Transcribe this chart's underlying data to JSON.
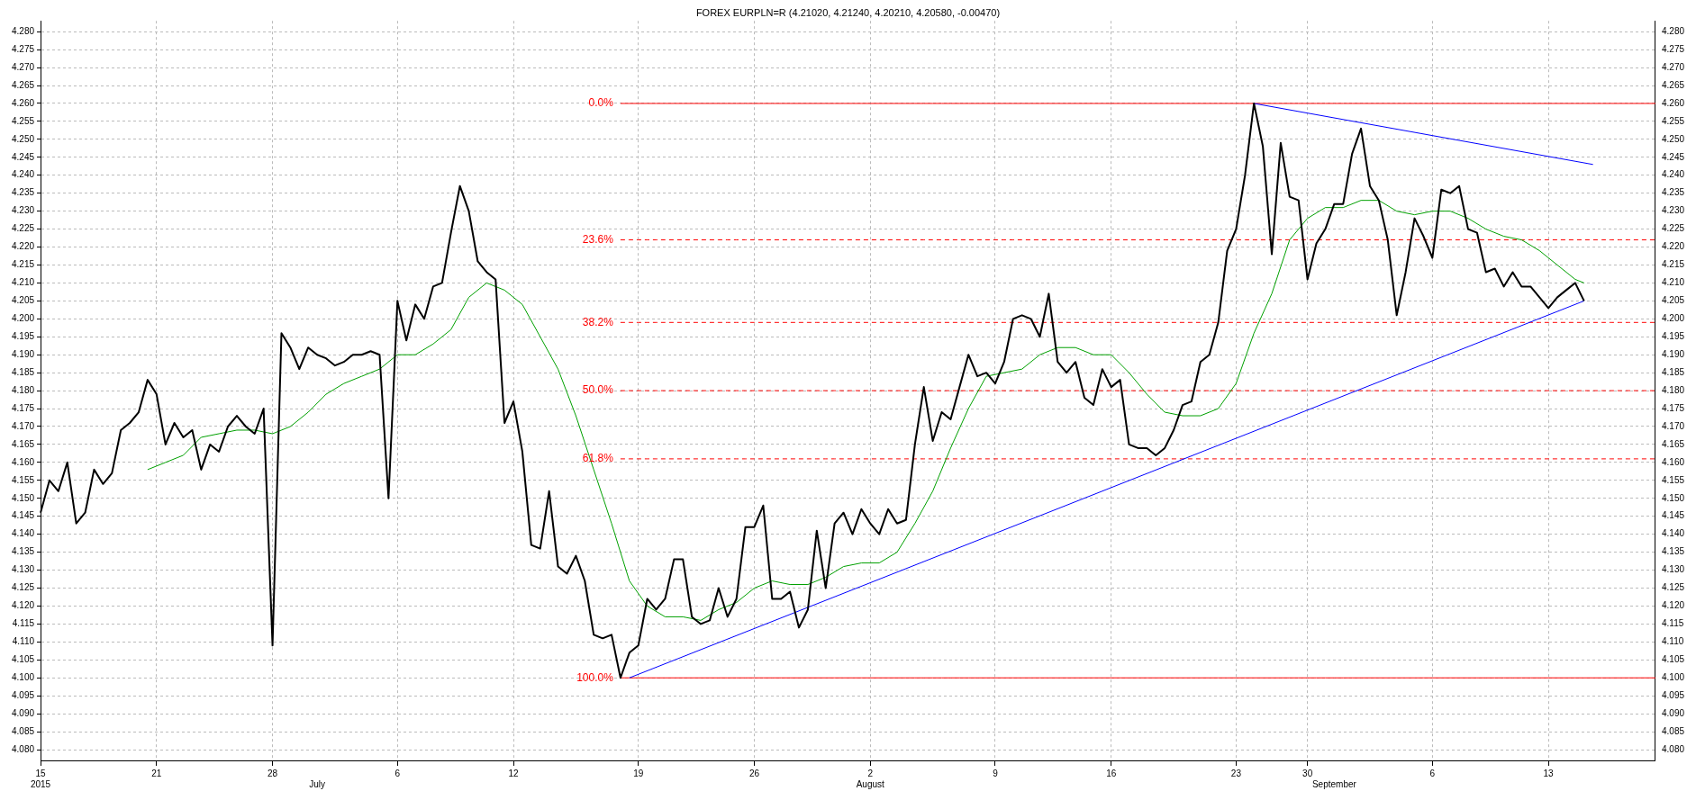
{
  "chart_data": {
    "type": "line",
    "title": "FOREX EURPLN=R (4.21020, 4.21240, 4.20210, 4.20580, -0.00470)",
    "categories": [
      "15\n2015",
      null,
      null,
      null,
      null,
      null,
      null,
      null,
      null,
      null,
      null,
      null,
      null,
      "21",
      null,
      null,
      null,
      null,
      null,
      null,
      null,
      null,
      null,
      null,
      null,
      null,
      "28",
      null,
      null,
      null,
      null,
      "\nJuly",
      null,
      null,
      null,
      null,
      null,
      null,
      null,
      null,
      "6",
      null,
      null,
      null,
      null,
      null,
      null,
      null,
      null,
      null,
      null,
      null,
      null,
      "12",
      null,
      null,
      null,
      null,
      null,
      null,
      null,
      null,
      null,
      null,
      null,
      null,
      null,
      "19",
      null,
      null,
      null,
      null,
      null,
      null,
      null,
      null,
      null,
      null,
      null,
      null,
      "26",
      null,
      null,
      null,
      null,
      null,
      null,
      null,
      null,
      null,
      null,
      null,
      null,
      "2\nAugust",
      null,
      null,
      null,
      null,
      null,
      null,
      null,
      null,
      null,
      null,
      null,
      null,
      null,
      "9",
      null,
      null,
      null,
      null,
      null,
      null,
      null,
      null,
      null,
      null,
      null,
      null,
      "16",
      null,
      null,
      null,
      null,
      null,
      null,
      null,
      null,
      null,
      null,
      null,
      null,
      null,
      "23",
      null,
      null,
      null,
      null,
      null,
      null,
      null,
      "30",
      null,
      null,
      "\nSeptember",
      null,
      null,
      null,
      null,
      null,
      null,
      null,
      null,
      null,
      null,
      "6",
      null,
      null,
      null,
      null,
      null,
      null,
      null,
      null,
      null,
      null,
      null,
      null,
      "13",
      null,
      null,
      null,
      null,
      null,
      null,
      null,
      null,
      null,
      null,
      null,
      null
    ],
    "series": [
      {
        "color": "#000000",
        "values": [
          4.146,
          4.155,
          4.152,
          4.16,
          4.143,
          4.146,
          4.158,
          4.154,
          4.157,
          4.169,
          4.171,
          4.174,
          4.183,
          4.179,
          4.165,
          4.171,
          4.167,
          4.169,
          4.158,
          4.165,
          4.163,
          4.17,
          4.173,
          4.17,
          4.168,
          4.175,
          4.109,
          4.196,
          4.192,
          4.186,
          4.192,
          4.19,
          4.189,
          4.187,
          4.188,
          4.19,
          4.19,
          4.191,
          4.19,
          4.15,
          4.205,
          4.194,
          4.204,
          4.2,
          4.209,
          4.21,
          4.224,
          4.237,
          4.23,
          4.216,
          4.213,
          4.211,
          4.171,
          4.177,
          4.163,
          4.137,
          4.136,
          4.152,
          4.131,
          4.129,
          4.134,
          4.127,
          4.112,
          4.111,
          4.112,
          4.1,
          4.107,
          4.109,
          4.122,
          4.119,
          4.122,
          4.133,
          4.133,
          4.117,
          4.115,
          4.116,
          4.125,
          4.117,
          4.122,
          4.142,
          4.142,
          4.148,
          4.122,
          4.122,
          4.124,
          4.114,
          4.119,
          4.141,
          4.125,
          4.143,
          4.146,
          4.14,
          4.147,
          4.143,
          4.14,
          4.147,
          4.143,
          4.144,
          4.165,
          4.181,
          4.166,
          4.174,
          4.172,
          4.181,
          4.19,
          4.184,
          4.185,
          4.182,
          4.188,
          4.2,
          4.201,
          4.2,
          4.195,
          4.207,
          4.188,
          4.185,
          4.188,
          4.178,
          4.176,
          4.186,
          4.181,
          4.183,
          4.165,
          4.164,
          4.164,
          4.162,
          4.164,
          4.169,
          4.176,
          4.177,
          4.188,
          4.19,
          4.199,
          4.219,
          4.225,
          4.24,
          4.26,
          4.248,
          4.218,
          4.249,
          4.234,
          4.233,
          4.211,
          4.221,
          4.225,
          4.232,
          4.232,
          4.246,
          4.253,
          4.237,
          4.233,
          4.222,
          4.201,
          4.213,
          4.228,
          4.223,
          4.217,
          4.236,
          4.235,
          4.237,
          4.225,
          4.224,
          4.213,
          4.214,
          4.209,
          4.213,
          4.209,
          4.209,
          4.206,
          4.203,
          4.206,
          4.208,
          4.21,
          4.205,
          null,
          null,
          null,
          null,
          null,
          null,
          null,
          null
        ]
      },
      {
        "color": "#00a000",
        "values": [
          null,
          null,
          null,
          null,
          null,
          null,
          null,
          null,
          null,
          null,
          null,
          null,
          4.158,
          null,
          4.16,
          null,
          4.162,
          null,
          4.167,
          null,
          4.168,
          null,
          4.169,
          null,
          4.169,
          null,
          4.168,
          null,
          4.17,
          null,
          4.174,
          null,
          4.179,
          null,
          4.182,
          null,
          4.184,
          null,
          4.186,
          null,
          4.19,
          null,
          4.19,
          null,
          4.193,
          null,
          4.197,
          null,
          4.206,
          null,
          4.21,
          null,
          4.208,
          null,
          4.204,
          null,
          4.195,
          null,
          4.186,
          null,
          4.173,
          null,
          4.158,
          null,
          4.143,
          null,
          4.127,
          null,
          4.12,
          null,
          4.117,
          null,
          4.117,
          null,
          4.116,
          null,
          4.119,
          null,
          4.121,
          null,
          4.125,
          null,
          4.127,
          null,
          4.126,
          null,
          4.126,
          null,
          4.128,
          null,
          4.131,
          null,
          4.132,
          null,
          4.132,
          null,
          4.135,
          null,
          4.143,
          null,
          4.152,
          null,
          4.164,
          null,
          4.175,
          null,
          4.184,
          null,
          4.185,
          null,
          4.186,
          null,
          4.19,
          null,
          4.192,
          null,
          4.192,
          null,
          4.19,
          null,
          4.19,
          null,
          4.185,
          null,
          4.179,
          null,
          4.174,
          null,
          4.173,
          null,
          4.173,
          null,
          4.175,
          null,
          4.182,
          null,
          4.196,
          null,
          4.207,
          null,
          4.222,
          null,
          4.228,
          null,
          4.231,
          null,
          4.231,
          null,
          4.233,
          null,
          4.233,
          null,
          4.23,
          null,
          4.229,
          null,
          4.23,
          null,
          4.23,
          null,
          4.228,
          null,
          4.225,
          null,
          4.223,
          null,
          4.222,
          null,
          4.219,
          null,
          4.215,
          null,
          4.211,
          4.21,
          null,
          null,
          null,
          null,
          null,
          null,
          null,
          null
        ]
      },
      {
        "color": "#0000ff",
        "values": [
          null,
          null,
          null,
          null,
          null,
          null,
          null,
          null,
          null,
          null,
          null,
          null,
          null,
          null,
          null,
          null,
          null,
          null,
          null,
          null,
          null,
          null,
          null,
          null,
          null,
          null,
          null,
          null,
          null,
          null,
          null,
          null,
          null,
          null,
          null,
          null,
          null,
          null,
          null,
          null,
          null,
          null,
          null,
          null,
          null,
          null,
          null,
          null,
          null,
          null,
          null,
          null,
          null,
          null,
          null,
          null,
          null,
          null,
          null,
          null,
          null,
          null,
          null,
          null,
          null,
          null,
          4.1,
          null,
          null,
          null,
          null,
          null,
          null,
          null,
          null,
          null,
          null,
          null,
          null,
          null,
          null,
          null,
          null,
          null,
          null,
          null,
          null,
          null,
          null,
          null,
          null,
          null,
          null,
          null,
          null,
          null,
          null,
          null,
          null,
          null,
          null,
          null,
          null,
          null,
          null,
          null,
          null,
          null,
          null,
          null,
          null,
          null,
          null,
          null,
          null,
          null,
          null,
          null,
          null,
          null,
          null,
          null,
          null,
          null,
          null,
          null,
          null,
          null,
          null,
          null,
          null,
          null,
          null,
          null,
          null,
          null,
          null,
          null,
          null,
          null,
          null,
          null,
          null,
          null,
          null,
          null,
          null,
          null,
          null,
          null,
          null,
          null,
          null,
          null,
          null,
          null,
          null,
          null,
          null,
          null,
          null,
          null,
          null,
          null,
          null,
          null,
          null,
          null,
          null,
          null,
          null,
          null,
          null,
          4.205,
          null,
          null,
          null,
          null,
          null,
          null,
          null,
          null
        ]
      },
      {
        "color": "#0000ff",
        "values": [
          null,
          null,
          null,
          null,
          null,
          null,
          null,
          null,
          null,
          null,
          null,
          null,
          null,
          null,
          null,
          null,
          null,
          null,
          null,
          null,
          null,
          null,
          null,
          null,
          null,
          null,
          null,
          null,
          null,
          null,
          null,
          null,
          null,
          null,
          null,
          null,
          null,
          null,
          null,
          null,
          null,
          null,
          null,
          null,
          null,
          null,
          null,
          null,
          null,
          null,
          null,
          null,
          null,
          null,
          null,
          null,
          null,
          null,
          null,
          null,
          null,
          null,
          null,
          null,
          null,
          null,
          null,
          null,
          null,
          null,
          null,
          null,
          null,
          null,
          null,
          null,
          null,
          null,
          null,
          null,
          null,
          null,
          null,
          null,
          null,
          null,
          null,
          null,
          null,
          null,
          null,
          null,
          null,
          null,
          null,
          null,
          null,
          null,
          null,
          null,
          null,
          null,
          null,
          null,
          null,
          null,
          null,
          null,
          null,
          null,
          null,
          null,
          null,
          null,
          null,
          null,
          null,
          null,
          null,
          null,
          null,
          null,
          null,
          null,
          null,
          null,
          null,
          null,
          null,
          null,
          null,
          null,
          null,
          null,
          null,
          null,
          4.26,
          null,
          null,
          null,
          null,
          null,
          null,
          null,
          null,
          null,
          null,
          null,
          null,
          null,
          null,
          null,
          null,
          null,
          null,
          null,
          null,
          null,
          null,
          null,
          null,
          null,
          null,
          null,
          null,
          null,
          null,
          null,
          null,
          null,
          null,
          null,
          null,
          null,
          4.243,
          null,
          null,
          null,
          null,
          null,
          null,
          null
        ]
      },
      {
        "name": "0.0%",
        "color": "#ff0000",
        "line_style": "solid",
        "values": [
          null,
          null,
          null,
          null,
          null,
          null,
          null,
          null,
          null,
          null,
          null,
          null,
          null,
          null,
          null,
          null,
          null,
          null,
          null,
          null,
          null,
          null,
          null,
          null,
          null,
          null,
          null,
          null,
          null,
          null,
          null,
          null,
          null,
          null,
          null,
          null,
          null,
          null,
          null,
          null,
          null,
          null,
          null,
          null,
          null,
          null,
          null,
          null,
          null,
          null,
          null,
          null,
          null,
          null,
          null,
          null,
          null,
          null,
          null,
          null,
          null,
          null,
          null,
          null,
          null,
          4.26,
          4.26,
          4.26,
          4.26,
          4.26,
          4.26,
          4.26,
          4.26,
          4.26,
          4.26,
          4.26,
          4.26,
          4.26,
          4.26,
          4.26,
          4.26,
          4.26,
          4.26,
          4.26,
          4.26,
          4.26,
          4.26,
          4.26,
          4.26,
          4.26,
          4.26,
          4.26,
          4.26,
          4.26,
          4.26,
          4.26,
          4.26,
          4.26,
          4.26,
          4.26,
          4.26,
          4.26,
          4.26,
          4.26,
          4.26,
          4.26,
          4.26,
          4.26,
          4.26,
          4.26,
          4.26,
          4.26,
          4.26,
          4.26,
          4.26,
          4.26,
          4.26,
          4.26,
          4.26,
          4.26,
          4.26,
          4.26,
          4.26,
          4.26,
          4.26,
          4.26,
          4.26,
          4.26,
          4.26,
          4.26,
          4.26,
          4.26,
          4.26,
          4.26,
          4.26,
          4.26,
          4.26,
          4.26,
          4.26,
          4.26,
          4.26,
          4.26,
          4.26,
          4.26,
          4.26,
          4.26,
          4.26,
          4.26,
          4.26,
          4.26,
          4.26,
          4.26,
          4.26,
          4.26,
          4.26,
          4.26,
          4.26,
          4.26,
          4.26,
          4.26,
          4.26,
          4.26,
          4.26,
          4.26,
          4.26,
          4.26,
          4.26,
          4.26,
          4.26,
          4.26,
          4.26,
          4.26,
          4.26,
          4.26,
          4.26,
          4.26,
          4.26,
          4.26,
          4.26,
          4.26,
          4.26,
          4.26
        ]
      },
      {
        "name": "23.6%",
        "color": "#ff0000",
        "line_style": "dashed",
        "values": [
          null,
          null,
          null,
          null,
          null,
          null,
          null,
          null,
          null,
          null,
          null,
          null,
          null,
          null,
          null,
          null,
          null,
          null,
          null,
          null,
          null,
          null,
          null,
          null,
          null,
          null,
          null,
          null,
          null,
          null,
          null,
          null,
          null,
          null,
          null,
          null,
          null,
          null,
          null,
          null,
          null,
          null,
          null,
          null,
          null,
          null,
          null,
          null,
          null,
          null,
          null,
          null,
          null,
          null,
          null,
          null,
          null,
          null,
          null,
          null,
          null,
          null,
          null,
          null,
          null,
          4.222,
          4.222,
          4.222,
          4.222,
          4.222,
          4.222,
          4.222,
          4.222,
          4.222,
          4.222,
          4.222,
          4.222,
          4.222,
          4.222,
          4.222,
          4.222,
          4.222,
          4.222,
          4.222,
          4.222,
          4.222,
          4.222,
          4.222,
          4.222,
          4.222,
          4.222,
          4.222,
          4.222,
          4.222,
          4.222,
          4.222,
          4.222,
          4.222,
          4.222,
          4.222,
          4.222,
          4.222,
          4.222,
          4.222,
          4.222,
          4.222,
          4.222,
          4.222,
          4.222,
          4.222,
          4.222,
          4.222,
          4.222,
          4.222,
          4.222,
          4.222,
          4.222,
          4.222,
          4.222,
          4.222,
          4.222,
          4.222,
          4.222,
          4.222,
          4.222,
          4.222,
          4.222,
          4.222,
          4.222,
          4.222,
          4.222,
          4.222,
          4.222,
          4.222,
          4.222,
          4.222,
          4.222,
          4.222,
          4.222,
          4.222,
          4.222,
          4.222,
          4.222,
          4.222,
          4.222,
          4.222,
          4.222,
          4.222,
          4.222,
          4.222,
          4.222,
          4.222,
          4.222,
          4.222,
          4.222,
          4.222,
          4.222,
          4.222,
          4.222,
          4.222,
          4.222,
          4.222,
          4.222,
          4.222,
          4.222,
          4.222,
          4.222,
          4.222,
          4.222,
          4.222,
          4.222,
          4.222,
          4.222,
          4.222,
          4.222,
          4.222,
          4.222,
          4.222,
          4.222,
          4.222,
          4.222,
          4.222
        ]
      },
      {
        "name": "38.2%",
        "color": "#ff0000",
        "line_style": "dashed",
        "values": [
          null,
          null,
          null,
          null,
          null,
          null,
          null,
          null,
          null,
          null,
          null,
          null,
          null,
          null,
          null,
          null,
          null,
          null,
          null,
          null,
          null,
          null,
          null,
          null,
          null,
          null,
          null,
          null,
          null,
          null,
          null,
          null,
          null,
          null,
          null,
          null,
          null,
          null,
          null,
          null,
          null,
          null,
          null,
          null,
          null,
          null,
          null,
          null,
          null,
          null,
          null,
          null,
          null,
          null,
          null,
          null,
          null,
          null,
          null,
          null,
          null,
          null,
          null,
          null,
          null,
          4.199,
          4.199,
          4.199,
          4.199,
          4.199,
          4.199,
          4.199,
          4.199,
          4.199,
          4.199,
          4.199,
          4.199,
          4.199,
          4.199,
          4.199,
          4.199,
          4.199,
          4.199,
          4.199,
          4.199,
          4.199,
          4.199,
          4.199,
          4.199,
          4.199,
          4.199,
          4.199,
          4.199,
          4.199,
          4.199,
          4.199,
          4.199,
          4.199,
          4.199,
          4.199,
          4.199,
          4.199,
          4.199,
          4.199,
          4.199,
          4.199,
          4.199,
          4.199,
          4.199,
          4.199,
          4.199,
          4.199,
          4.199,
          4.199,
          4.199,
          4.199,
          4.199,
          4.199,
          4.199,
          4.199,
          4.199,
          4.199,
          4.199,
          4.199,
          4.199,
          4.199,
          4.199,
          4.199,
          4.199,
          4.199,
          4.199,
          4.199,
          4.199,
          4.199,
          4.199,
          4.199,
          4.199,
          4.199,
          4.199,
          4.199,
          4.199,
          4.199,
          4.199,
          4.199,
          4.199,
          4.199,
          4.199,
          4.199,
          4.199,
          4.199,
          4.199,
          4.199,
          4.199,
          4.199,
          4.199,
          4.199,
          4.199,
          4.199,
          4.199,
          4.199,
          4.199,
          4.199,
          4.199,
          4.199,
          4.199,
          4.199,
          4.199,
          4.199,
          4.199,
          4.199,
          4.199,
          4.199,
          4.199,
          4.199,
          4.199,
          4.199,
          4.199,
          4.199,
          4.199,
          4.199,
          4.199,
          4.199
        ]
      },
      {
        "name": "50.0%",
        "color": "#ff0000",
        "line_style": "dashed",
        "values": [
          null,
          null,
          null,
          null,
          null,
          null,
          null,
          null,
          null,
          null,
          null,
          null,
          null,
          null,
          null,
          null,
          null,
          null,
          null,
          null,
          null,
          null,
          null,
          null,
          null,
          null,
          null,
          null,
          null,
          null,
          null,
          null,
          null,
          null,
          null,
          null,
          null,
          null,
          null,
          null,
          null,
          null,
          null,
          null,
          null,
          null,
          null,
          null,
          null,
          null,
          null,
          null,
          null,
          null,
          null,
          null,
          null,
          null,
          null,
          null,
          null,
          null,
          null,
          null,
          null,
          4.18,
          4.18,
          4.18,
          4.18,
          4.18,
          4.18,
          4.18,
          4.18,
          4.18,
          4.18,
          4.18,
          4.18,
          4.18,
          4.18,
          4.18,
          4.18,
          4.18,
          4.18,
          4.18,
          4.18,
          4.18,
          4.18,
          4.18,
          4.18,
          4.18,
          4.18,
          4.18,
          4.18,
          4.18,
          4.18,
          4.18,
          4.18,
          4.18,
          4.18,
          4.18,
          4.18,
          4.18,
          4.18,
          4.18,
          4.18,
          4.18,
          4.18,
          4.18,
          4.18,
          4.18,
          4.18,
          4.18,
          4.18,
          4.18,
          4.18,
          4.18,
          4.18,
          4.18,
          4.18,
          4.18,
          4.18,
          4.18,
          4.18,
          4.18,
          4.18,
          4.18,
          4.18,
          4.18,
          4.18,
          4.18,
          4.18,
          4.18,
          4.18,
          4.18,
          4.18,
          4.18,
          4.18,
          4.18,
          4.18,
          4.18,
          4.18,
          4.18,
          4.18,
          4.18,
          4.18,
          4.18,
          4.18,
          4.18,
          4.18,
          4.18,
          4.18,
          4.18,
          4.18,
          4.18,
          4.18,
          4.18,
          4.18,
          4.18,
          4.18,
          4.18,
          4.18,
          4.18,
          4.18,
          4.18,
          4.18,
          4.18,
          4.18,
          4.18,
          4.18,
          4.18,
          4.18,
          4.18,
          4.18,
          4.18,
          4.18,
          4.18,
          4.18,
          4.18,
          4.18,
          4.18,
          4.18,
          4.18
        ]
      },
      {
        "name": "61.8%",
        "color": "#ff0000",
        "line_style": "dashed",
        "values": [
          null,
          null,
          null,
          null,
          null,
          null,
          null,
          null,
          null,
          null,
          null,
          null,
          null,
          null,
          null,
          null,
          null,
          null,
          null,
          null,
          null,
          null,
          null,
          null,
          null,
          null,
          null,
          null,
          null,
          null,
          null,
          null,
          null,
          null,
          null,
          null,
          null,
          null,
          null,
          null,
          null,
          null,
          null,
          null,
          null,
          null,
          null,
          null,
          null,
          null,
          null,
          null,
          null,
          null,
          null,
          null,
          null,
          null,
          null,
          null,
          null,
          null,
          null,
          null,
          null,
          4.161,
          4.161,
          4.161,
          4.161,
          4.161,
          4.161,
          4.161,
          4.161,
          4.161,
          4.161,
          4.161,
          4.161,
          4.161,
          4.161,
          4.161,
          4.161,
          4.161,
          4.161,
          4.161,
          4.161,
          4.161,
          4.161,
          4.161,
          4.161,
          4.161,
          4.161,
          4.161,
          4.161,
          4.161,
          4.161,
          4.161,
          4.161,
          4.161,
          4.161,
          4.161,
          4.161,
          4.161,
          4.161,
          4.161,
          4.161,
          4.161,
          4.161,
          4.161,
          4.161,
          4.161,
          4.161,
          4.161,
          4.161,
          4.161,
          4.161,
          4.161,
          4.161,
          4.161,
          4.161,
          4.161,
          4.161,
          4.161,
          4.161,
          4.161,
          4.161,
          4.161,
          4.161,
          4.161,
          4.161,
          4.161,
          4.161,
          4.161,
          4.161,
          4.161,
          4.161,
          4.161,
          4.161,
          4.161,
          4.161,
          4.161,
          4.161,
          4.161,
          4.161,
          4.161,
          4.161,
          4.161,
          4.161,
          4.161,
          4.161,
          4.161,
          4.161,
          4.161,
          4.161,
          4.161,
          4.161,
          4.161,
          4.161,
          4.161,
          4.161,
          4.161,
          4.161,
          4.161,
          4.161,
          4.161,
          4.161,
          4.161,
          4.161,
          4.161,
          4.161,
          4.161,
          4.161,
          4.161,
          4.161,
          4.161,
          4.161,
          4.161,
          4.161,
          4.161,
          4.161,
          4.161,
          4.161,
          4.161
        ]
      },
      {
        "name": "100.0%",
        "color": "#ff0000",
        "line_style": "solid",
        "values": [
          null,
          null,
          null,
          null,
          null,
          null,
          null,
          null,
          null,
          null,
          null,
          null,
          null,
          null,
          null,
          null,
          null,
          null,
          null,
          null,
          null,
          null,
          null,
          null,
          null,
          null,
          null,
          null,
          null,
          null,
          null,
          null,
          null,
          null,
          null,
          null,
          null,
          null,
          null,
          null,
          null,
          null,
          null,
          null,
          null,
          null,
          null,
          null,
          null,
          null,
          null,
          null,
          null,
          null,
          null,
          null,
          null,
          null,
          null,
          null,
          null,
          null,
          null,
          null,
          null,
          4.1,
          4.1,
          4.1,
          4.1,
          4.1,
          4.1,
          4.1,
          4.1,
          4.1,
          4.1,
          4.1,
          4.1,
          4.1,
          4.1,
          4.1,
          4.1,
          4.1,
          4.1,
          4.1,
          4.1,
          4.1,
          4.1,
          4.1,
          4.1,
          4.1,
          4.1,
          4.1,
          4.1,
          4.1,
          4.1,
          4.1,
          4.1,
          4.1,
          4.1,
          4.1,
          4.1,
          4.1,
          4.1,
          4.1,
          4.1,
          4.1,
          4.1,
          4.1,
          4.1,
          4.1,
          4.1,
          4.1,
          4.1,
          4.1,
          4.1,
          4.1,
          4.1,
          4.1,
          4.1,
          4.1,
          4.1,
          4.1,
          4.1,
          4.1,
          4.1,
          4.1,
          4.1,
          4.1,
          4.1,
          4.1,
          4.1,
          4.1,
          4.1,
          4.1,
          4.1,
          4.1,
          4.1,
          4.1,
          4.1,
          4.1,
          4.1,
          4.1,
          4.1,
          4.1,
          4.1,
          4.1,
          4.1,
          4.1,
          4.1,
          4.1,
          4.1,
          4.1,
          4.1,
          4.1,
          4.1,
          4.1,
          4.1,
          4.1,
          4.1,
          4.1,
          4.1,
          4.1,
          4.1,
          4.1,
          4.1,
          4.1,
          4.1,
          4.1,
          4.1,
          4.1,
          4.1,
          4.1,
          4.1,
          4.1,
          4.1,
          4.1,
          4.1,
          4.1,
          4.1,
          4.1,
          4.1,
          4.1
        ]
      }
    ],
    "ylim": [
      4.077,
      4.283
    ],
    "yticks": [
      {
        "value": 4.08,
        "label": "4.080"
      },
      4.085,
      {
        "value": 4.09,
        "label": "4.090"
      },
      4.095,
      {
        "value": 4.1,
        "label": "4.100"
      },
      4.105,
      {
        "value": 4.11,
        "label": "4.110"
      },
      4.115,
      {
        "value": 4.12,
        "label": "4.120"
      },
      4.125,
      {
        "value": 4.13,
        "label": "4.130"
      },
      4.135,
      {
        "value": 4.14,
        "label": "4.140"
      },
      4.145,
      {
        "value": 4.15,
        "label": "4.150"
      },
      4.155,
      {
        "value": 4.16,
        "label": "4.160"
      },
      4.165,
      {
        "value": 4.17,
        "label": "4.170"
      },
      4.175,
      {
        "value": 4.18,
        "label": "4.180"
      },
      4.185,
      {
        "value": 4.19,
        "label": "4.190"
      },
      4.195,
      {
        "value": 4.2,
        "label": "4.200"
      },
      4.205,
      {
        "value": 4.21,
        "label": "4.210"
      },
      4.215,
      {
        "value": 4.22,
        "label": "4.220"
      },
      4.225,
      {
        "value": 4.23,
        "label": "4.230"
      },
      4.235,
      {
        "value": 4.24,
        "label": "4.240"
      },
      4.245,
      {
        "value": 4.25,
        "label": "4.250"
      },
      4.255,
      {
        "value": 4.26,
        "label": "4.260"
      },
      4.265,
      {
        "value": 4.27,
        "label": "4.270"
      },
      4.275,
      {
        "value": 4.28,
        "label": "4.280"
      }
    ],
    "y2lim": [
      4.077,
      4.283
    ],
    "y2ticks": [
      {
        "value": 4.08,
        "label": "4.080"
      },
      4.085,
      {
        "value": 4.09,
        "label": "4.090"
      },
      4.095,
      {
        "value": 4.1,
        "label": "4.100"
      },
      4.105,
      {
        "value": 4.11,
        "label": "4.110"
      },
      4.115,
      {
        "value": 4.12,
        "label": "4.120"
      },
      4.125,
      {
        "value": 4.13,
        "label": "4.130"
      },
      4.135,
      {
        "value": 4.14,
        "label": "4.140"
      },
      4.145,
      {
        "value": 4.15,
        "label": "4.150"
      },
      4.155,
      {
        "value": 4.16,
        "label": "4.160"
      },
      4.165,
      {
        "value": 4.17,
        "label": "4.170"
      },
      4.175,
      {
        "value": 4.18,
        "label": "4.180"
      },
      4.185,
      {
        "value": 4.19,
        "label": "4.190"
      },
      4.195,
      {
        "value": 4.2,
        "label": "4.200"
      },
      4.205,
      {
        "value": 4.21,
        "label": "4.210"
      },
      4.215,
      {
        "value": 4.22,
        "label": "4.220"
      },
      4.225,
      {
        "value": 4.23,
        "label": "4.230"
      },
      4.235,
      {
        "value": 4.24,
        "label": "4.240"
      },
      4.245,
      {
        "value": 4.25,
        "label": "4.250"
      },
      4.255,
      {
        "value": 4.26,
        "label": "4.260"
      },
      4.265,
      {
        "value": 4.27,
        "label": "4.270"
      },
      4.275,
      {
        "value": 4.28,
        "label": "4.280"
      }
    ],
    "grid": true,
    "legend": false,
    "marker": "none",
    "line_style": "solid"
  }
}
